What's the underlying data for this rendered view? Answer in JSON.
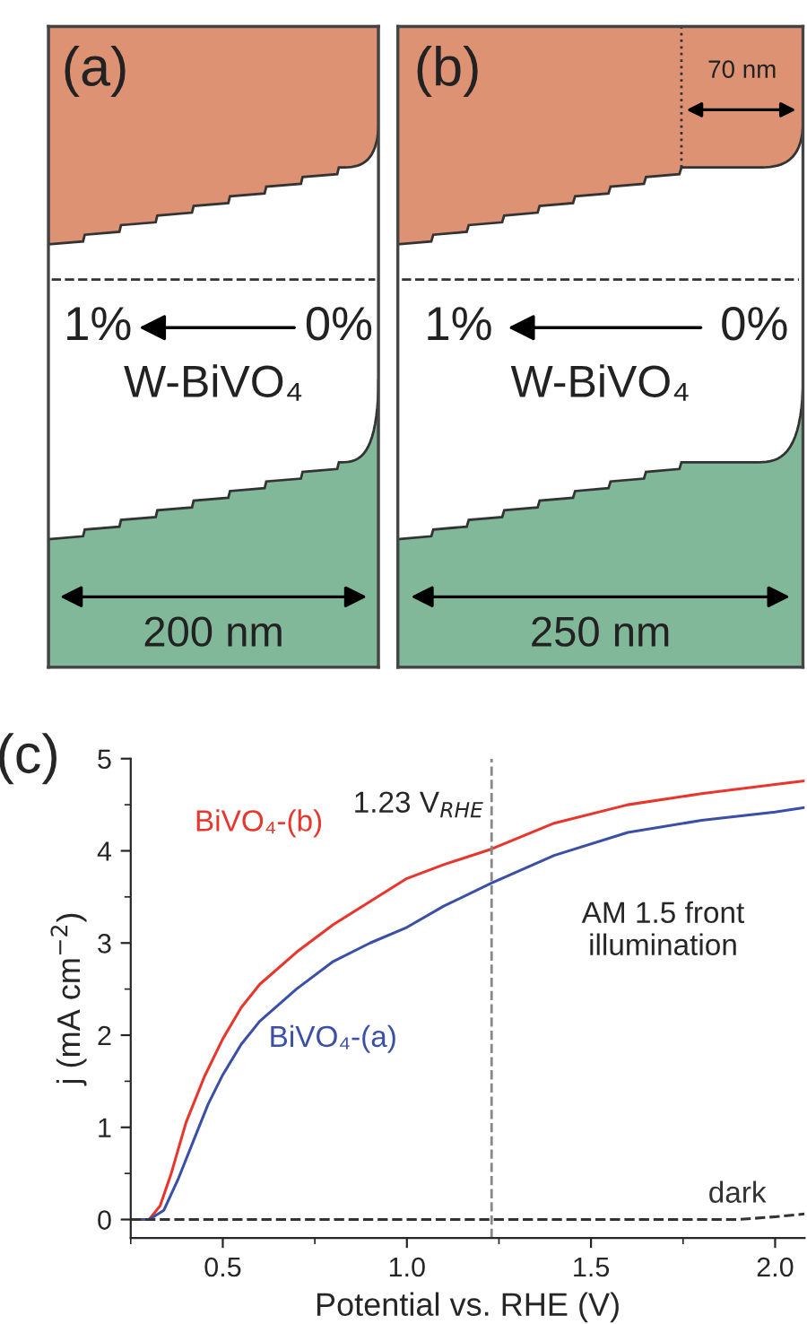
{
  "chart_data": [
    {
      "type": "other",
      "annotations": [
        "(a)",
        "1%",
        "0%",
        "W-BiVO₄",
        "200 nm"
      ]
    },
    {
      "type": "other",
      "annotations": [
        "(b)",
        "1%",
        "0%",
        "W-BiVO₄",
        "250 nm",
        "70 nm"
      ]
    },
    {
      "type": "line",
      "title": "(c)",
      "xlabel": "Potential vs. RHE (V)",
      "ylabel": "j (mA cm$^{−2}$)",
      "xlim": [
        0.25,
        2.08
      ],
      "ylim": [
        -0.2,
        5
      ],
      "xticks": [
        0.5,
        {
          "value": 1.0,
          "label": "1.0"
        },
        1.5,
        {
          "value": 2.0,
          "label": "2.0"
        }
      ],
      "yticks": [
        0,
        1,
        2,
        3,
        4,
        5
      ],
      "grid": false,
      "legend": false,
      "series": [
        {
          "name": "BiVO₄-(b)",
          "color": "#e8362c",
          "line_style": "solid",
          "x": [
            0.25,
            0.3,
            0.33,
            0.36,
            0.4,
            0.45,
            0.5,
            0.55,
            0.6,
            0.7,
            0.8,
            0.9,
            1.0,
            1.1,
            1.23,
            1.4,
            1.6,
            1.8,
            2.0,
            2.08
          ],
          "values": [
            0,
            0,
            0.15,
            0.5,
            1.05,
            1.55,
            1.96,
            2.3,
            2.55,
            2.9,
            3.2,
            3.45,
            3.7,
            3.85,
            4.02,
            4.3,
            4.5,
            4.62,
            4.72,
            4.76
          ]
        },
        {
          "name": "BiVO₄-(a)",
          "color": "#3a4fa8",
          "line_style": "solid",
          "x": [
            0.25,
            0.3,
            0.34,
            0.38,
            0.42,
            0.46,
            0.5,
            0.55,
            0.6,
            0.7,
            0.8,
            0.9,
            1.0,
            1.1,
            1.23,
            1.4,
            1.6,
            1.8,
            2.0,
            2.08
          ],
          "values": [
            0,
            0,
            0.1,
            0.45,
            0.85,
            1.25,
            1.57,
            1.9,
            2.15,
            2.5,
            2.8,
            3.0,
            3.17,
            3.4,
            3.65,
            3.95,
            4.2,
            4.33,
            4.42,
            4.47
          ]
        },
        {
          "name": "dark",
          "color": "#333333",
          "line_style": "dashed",
          "x": [
            0.25,
            1.0,
            1.9,
            2.0,
            2.08
          ],
          "values": [
            0,
            0,
            0,
            0.03,
            0.06
          ]
        }
      ],
      "ref_lines": [
        {
          "axis": "x",
          "value": 1.23,
          "label": "1.23 V$_{RHE}$",
          "color": "#888888",
          "line_style": "dashed"
        }
      ],
      "annotations": [
        "AM 1.5 front\nillumination"
      ]
    }
  ]
}
